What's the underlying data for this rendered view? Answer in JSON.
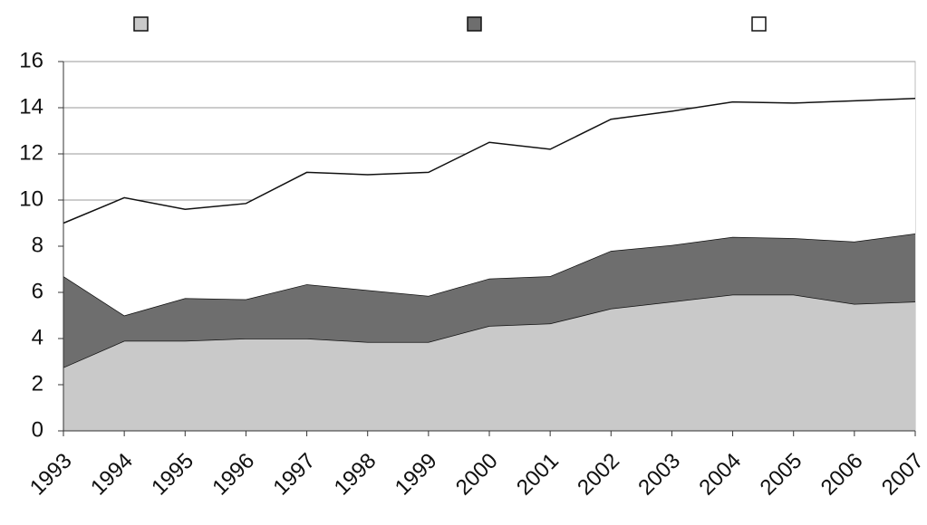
{
  "chart_data": {
    "type": "stacked_area",
    "categories": [
      "1993",
      "1994",
      "1995",
      "1996",
      "1997",
      "1998",
      "1999",
      "2000",
      "2001",
      "2002",
      "2003",
      "2004",
      "2005",
      "2006",
      "2007"
    ],
    "series": [
      {
        "color": "#c9c9c9",
        "values": [
          2.75,
          3.9,
          3.9,
          4.0,
          4.0,
          3.85,
          3.85,
          4.55,
          4.65,
          5.3,
          5.6,
          5.9,
          5.9,
          5.5,
          5.6
        ]
      },
      {
        "color": "#6e6e6e",
        "values": [
          3.95,
          1.1,
          1.85,
          1.7,
          2.35,
          2.25,
          2.0,
          2.05,
          2.05,
          2.5,
          2.45,
          2.5,
          2.45,
          2.7,
          2.95
        ]
      },
      {
        "color": "#ffffff",
        "values": [
          2.3,
          5.1,
          3.85,
          4.15,
          4.85,
          5.0,
          5.35,
          5.9,
          5.5,
          5.7,
          5.8,
          5.85,
          5.85,
          6.1,
          5.85
        ]
      }
    ],
    "ylim": [
      0,
      16
    ],
    "yticks": [
      0,
      2,
      4,
      6,
      8,
      10,
      12,
      14,
      16
    ],
    "grid": true,
    "legend": "top"
  }
}
